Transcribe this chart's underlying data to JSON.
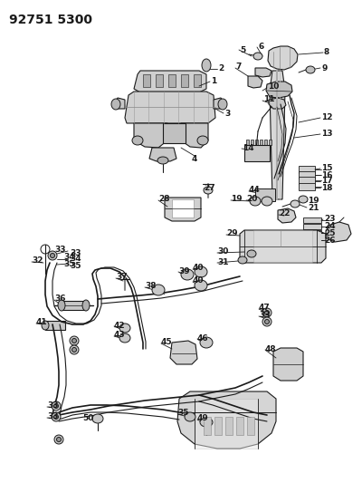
{
  "bg_color": "#ffffff",
  "line_color": "#1a1a1a",
  "part_header": "92751 5300",
  "fig_width": 4.0,
  "fig_height": 5.33,
  "dpi": 100
}
